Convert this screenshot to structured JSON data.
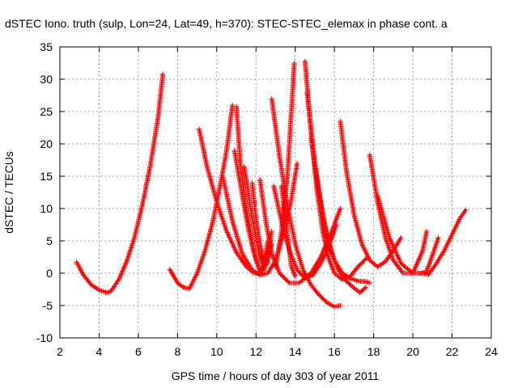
{
  "chart_data": {
    "type": "scatter",
    "title": "dSTEC Iono. truth (sulp, Lon=24, Lat=49, h=370): STEC-STEC_elemax in phase cont. a",
    "xlabel": "GPS time / hours of day 303 of year 2011",
    "ylabel": "dSTEC  / TECUs",
    "xlim": [
      2,
      24
    ],
    "ylim": [
      -10,
      35
    ],
    "xticks": [
      "2",
      "4",
      "6",
      "8",
      "10",
      "12",
      "14",
      "16",
      "18",
      "20",
      "22",
      "24"
    ],
    "yticks": [
      "-10",
      "-5",
      "0",
      "5",
      "10",
      "15",
      "20",
      "25",
      "30",
      "35"
    ],
    "grid": true,
    "marker": "+",
    "color": "#ff0000",
    "series": [
      {
        "x": [
          2.85,
          3.2,
          3.6,
          4.0,
          4.4,
          4.6,
          5.0,
          5.4,
          5.8,
          6.2,
          6.6,
          7.0,
          7.25
        ],
        "y": [
          1.7,
          -0.3,
          -1.8,
          -2.6,
          -3.0,
          -2.8,
          -1.0,
          1.8,
          5.5,
          10.5,
          16.5,
          24.0,
          30.8
        ]
      },
      {
        "x": [
          7.6,
          8.0,
          8.3,
          8.6,
          9.0,
          9.4,
          9.8,
          10.2,
          10.5,
          10.8
        ],
        "y": [
          0.6,
          -1.5,
          -2.2,
          -2.4,
          0.0,
          3.5,
          8.0,
          14.0,
          19.0,
          26.0
        ]
      },
      {
        "x": [
          9.1,
          9.5,
          10.0,
          10.5,
          11.0,
          11.5,
          11.9,
          12.2,
          12.5,
          12.8
        ],
        "y": [
          22.3,
          16.5,
          11.0,
          6.5,
          3.2,
          1.0,
          0.0,
          0.0,
          1.8,
          4.5
        ]
      },
      {
        "x": [
          11.0,
          11.2,
          11.5,
          11.8,
          12.0,
          12.2,
          12.4,
          12.6
        ],
        "y": [
          25.8,
          17.0,
          10.0,
          5.0,
          2.0,
          0.3,
          0.5,
          3.0
        ]
      },
      {
        "x": [
          10.3,
          10.8,
          11.3,
          11.8,
          12.2,
          12.6,
          13.0,
          13.4,
          13.8,
          14.1
        ],
        "y": [
          15.0,
          8.0,
          3.0,
          0.5,
          -0.3,
          0.0,
          2.0,
          6.0,
          11.5,
          17.0
        ]
      },
      {
        "x": [
          10.9,
          11.3,
          11.6,
          11.9,
          12.2,
          12.4,
          12.6
        ],
        "y": [
          19.0,
          12.0,
          7.0,
          3.0,
          0.5,
          0.5,
          3.5
        ]
      },
      {
        "x": [
          11.4,
          11.7,
          12.0,
          12.2,
          12.4,
          12.6
        ],
        "y": [
          16.5,
          10.5,
          5.5,
          2.5,
          1.0,
          5.0
        ]
      },
      {
        "x": [
          11.8,
          12.0,
          12.2,
          12.4,
          12.6,
          12.8
        ],
        "y": [
          14.0,
          8.5,
          4.5,
          2.0,
          1.5,
          6.5
        ]
      },
      {
        "x": [
          12.2,
          12.5,
          12.8,
          13.2,
          13.7,
          14.2,
          14.8,
          15.3,
          15.8,
          16.3
        ],
        "y": [
          14.5,
          8.0,
          3.0,
          0.0,
          -1.5,
          -1.5,
          0.0,
          2.5,
          6.0,
          10.0
        ]
      },
      {
        "x": [
          12.8,
          13.2,
          13.6,
          14.0,
          14.4,
          14.8,
          15.2,
          15.6,
          16.0,
          16.3
        ],
        "y": [
          27.0,
          18.0,
          10.5,
          4.5,
          0.5,
          -1.8,
          -3.3,
          -4.5,
          -5.2,
          -5.0
        ]
      },
      {
        "x": [
          12.9,
          13.3,
          13.7,
          14.1,
          14.5,
          14.9,
          15.3,
          15.7,
          16.1
        ],
        "y": [
          13.5,
          8.0,
          3.5,
          0.5,
          -0.8,
          -0.3,
          1.5,
          4.0,
          7.5
        ]
      },
      {
        "x": [
          13.3,
          13.6,
          13.8,
          14.0
        ],
        "y": [
          13.5,
          6.0,
          1.0,
          -0.5
        ]
      },
      {
        "x": [
          13.0,
          13.3,
          13.6,
          13.8,
          13.95
        ],
        "y": [
          1.0,
          6.5,
          15.0,
          25.0,
          32.5
        ]
      },
      {
        "x": [
          14.5,
          14.8,
          15.1,
          15.4,
          15.7,
          16.0,
          16.4,
          16.8,
          17.2,
          17.7
        ],
        "y": [
          32.8,
          22.0,
          13.0,
          6.5,
          2.3,
          0.0,
          -1.0,
          -0.5,
          1.0,
          2.5
        ]
      },
      {
        "x": [
          14.6,
          15.0,
          15.4,
          15.8,
          16.2,
          16.6,
          17.0,
          17.3,
          17.6
        ],
        "y": [
          28.0,
          17.0,
          9.0,
          3.5,
          0.5,
          -1.2,
          -2.3,
          -3.0,
          -2.2
        ]
      },
      {
        "x": [
          14.8,
          15.2,
          15.6,
          16.0,
          16.4,
          16.8,
          17.2,
          17.6,
          17.8
        ],
        "y": [
          21.0,
          12.5,
          6.0,
          2.0,
          0.0,
          -0.8,
          -1.2,
          -1.3,
          -1.5
        ]
      },
      {
        "x": [
          16.3,
          16.6,
          17.0,
          17.4,
          17.8,
          18.2,
          18.6,
          19.0,
          19.4
        ],
        "y": [
          23.5,
          16.0,
          9.0,
          4.5,
          2.0,
          1.0,
          1.8,
          3.5,
          5.5
        ]
      },
      {
        "x": [
          17.8,
          18.2,
          18.6,
          19.0,
          19.5,
          20.0,
          20.5,
          20.7
        ],
        "y": [
          18.3,
          11.0,
          5.5,
          2.0,
          0.0,
          0.0,
          3.5,
          6.5
        ]
      },
      {
        "x": [
          18.2,
          18.8,
          19.4,
          20.0,
          20.4,
          20.7,
          21.0,
          21.3
        ],
        "y": [
          12.0,
          5.5,
          1.5,
          0.0,
          0.0,
          0.3,
          2.8,
          5.5
        ]
      },
      {
        "x": [
          20.4,
          20.8,
          21.2,
          21.6,
          22.0,
          22.4,
          22.7
        ],
        "y": [
          0.0,
          -0.2,
          1.5,
          3.5,
          6.0,
          8.5,
          9.8
        ]
      }
    ]
  }
}
